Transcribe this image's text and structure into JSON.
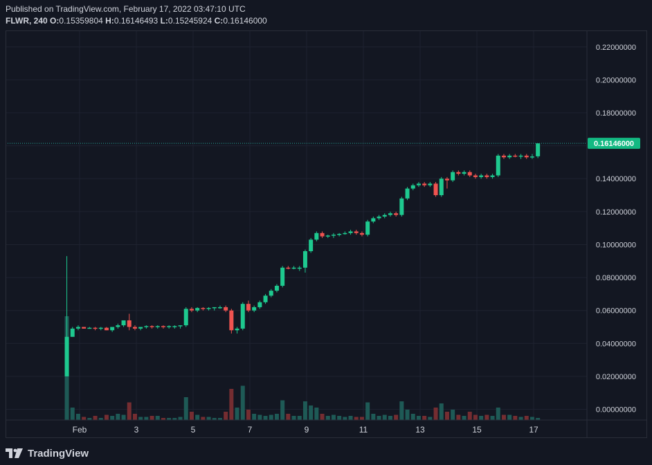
{
  "header": {
    "published": "Published on TradingView.com, February 17, 2022 03:47:10 UTC",
    "symbol": "FLWR",
    "interval": "240",
    "o_label": "O:",
    "o_value": "0.15359804",
    "h_label": "H:",
    "h_value": "0.16146493",
    "l_label": "L:",
    "l_value": "0.15245924",
    "c_label": "C:",
    "c_value": "0.16146000"
  },
  "footer": {
    "brand": "TradingView"
  },
  "colors": {
    "up": "#26a69a",
    "upBright": "#22ab94",
    "upCandle": "#1ec98f",
    "down": "#ef5350",
    "grid": "#1e2230",
    "background": "#131722",
    "axisText": "#d1d4dc",
    "priceLine": "#26a69a",
    "priceTag": "#13b982"
  },
  "chart_data": {
    "type": "candlestick",
    "title": "",
    "xlabel": "",
    "ylabel": "",
    "ylim": [
      -0.0065,
      0.23
    ],
    "y_ticks": [
      "0.22000000",
      "0.20000000",
      "0.18000000",
      "0.16000000",
      "0.14000000",
      "0.12000000",
      "0.10000000",
      "0.08000000",
      "0.06000000",
      "0.04000000",
      "0.02000000",
      "0.00000000"
    ],
    "y_tick_values": [
      0.22,
      0.2,
      0.18,
      0.16,
      0.14,
      0.12,
      0.1,
      0.08,
      0.06,
      0.04,
      0.02,
      0.0
    ],
    "x_ticks": [
      "Feb",
      "3",
      "5",
      "7",
      "9",
      "11",
      "13",
      "15",
      "17"
    ],
    "x_tick_day": [
      1,
      3,
      5,
      7,
      9,
      11,
      13,
      15,
      17
    ],
    "last_price_label": "0.16146000",
    "last_price": 0.16146,
    "candles": [
      {
        "d": 0.55,
        "o": 0.02,
        "h": 0.093,
        "l": 0.02,
        "c": 0.044,
        "v": 1.0
      },
      {
        "d": 0.75,
        "o": 0.044,
        "h": 0.05,
        "l": 0.044,
        "c": 0.049,
        "v": 0.12
      },
      {
        "d": 0.95,
        "o": 0.049,
        "h": 0.051,
        "l": 0.048,
        "c": 0.05,
        "v": 0.06
      },
      {
        "d": 1.15,
        "o": 0.05,
        "h": 0.05,
        "l": 0.049,
        "c": 0.049,
        "v": 0.03
      },
      {
        "d": 1.35,
        "o": 0.049,
        "h": 0.05,
        "l": 0.049,
        "c": 0.0495,
        "v": 0.02
      },
      {
        "d": 1.55,
        "o": 0.0495,
        "h": 0.05,
        "l": 0.048,
        "c": 0.049,
        "v": 0.04
      },
      {
        "d": 1.75,
        "o": 0.049,
        "h": 0.05,
        "l": 0.048,
        "c": 0.0495,
        "v": 0.02
      },
      {
        "d": 1.95,
        "o": 0.0495,
        "h": 0.05,
        "l": 0.048,
        "c": 0.048,
        "v": 0.05
      },
      {
        "d": 2.15,
        "o": 0.048,
        "h": 0.05,
        "l": 0.047,
        "c": 0.05,
        "v": 0.04
      },
      {
        "d": 2.35,
        "o": 0.05,
        "h": 0.052,
        "l": 0.049,
        "c": 0.051,
        "v": 0.06
      },
      {
        "d": 2.55,
        "o": 0.051,
        "h": 0.054,
        "l": 0.05,
        "c": 0.054,
        "v": 0.05
      },
      {
        "d": 2.75,
        "o": 0.054,
        "h": 0.058,
        "l": 0.048,
        "c": 0.05,
        "v": 0.17
      },
      {
        "d": 2.95,
        "o": 0.05,
        "h": 0.051,
        "l": 0.048,
        "c": 0.049,
        "v": 0.06
      },
      {
        "d": 3.15,
        "o": 0.049,
        "h": 0.05,
        "l": 0.048,
        "c": 0.05,
        "v": 0.03
      },
      {
        "d": 3.35,
        "o": 0.05,
        "h": 0.051,
        "l": 0.049,
        "c": 0.0505,
        "v": 0.03
      },
      {
        "d": 3.55,
        "o": 0.0505,
        "h": 0.051,
        "l": 0.049,
        "c": 0.05,
        "v": 0.04
      },
      {
        "d": 3.75,
        "o": 0.05,
        "h": 0.051,
        "l": 0.049,
        "c": 0.0505,
        "v": 0.04
      },
      {
        "d": 3.95,
        "o": 0.0505,
        "h": 0.051,
        "l": 0.049,
        "c": 0.05,
        "v": 0.02
      },
      {
        "d": 4.15,
        "o": 0.05,
        "h": 0.051,
        "l": 0.049,
        "c": 0.0505,
        "v": 0.02
      },
      {
        "d": 4.35,
        "o": 0.0505,
        "h": 0.051,
        "l": 0.049,
        "c": 0.0505,
        "v": 0.02
      },
      {
        "d": 4.55,
        "o": 0.0505,
        "h": 0.051,
        "l": 0.049,
        "c": 0.051,
        "v": 0.03
      },
      {
        "d": 4.75,
        "o": 0.051,
        "h": 0.062,
        "l": 0.05,
        "c": 0.061,
        "v": 0.22
      },
      {
        "d": 4.95,
        "o": 0.061,
        "h": 0.062,
        "l": 0.059,
        "c": 0.06,
        "v": 0.08
      },
      {
        "d": 5.15,
        "o": 0.06,
        "h": 0.062,
        "l": 0.059,
        "c": 0.0615,
        "v": 0.05
      },
      {
        "d": 5.35,
        "o": 0.0615,
        "h": 0.062,
        "l": 0.06,
        "c": 0.061,
        "v": 0.03
      },
      {
        "d": 5.55,
        "o": 0.061,
        "h": 0.062,
        "l": 0.06,
        "c": 0.0615,
        "v": 0.03
      },
      {
        "d": 5.75,
        "o": 0.0615,
        "h": 0.062,
        "l": 0.06,
        "c": 0.062,
        "v": 0.02
      },
      {
        "d": 5.95,
        "o": 0.062,
        "h": 0.063,
        "l": 0.061,
        "c": 0.062,
        "v": 0.02
      },
      {
        "d": 6.15,
        "o": 0.062,
        "h": 0.063,
        "l": 0.059,
        "c": 0.06,
        "v": 0.08
      },
      {
        "d": 6.35,
        "o": 0.06,
        "h": 0.061,
        "l": 0.046,
        "c": 0.048,
        "v": 0.3
      },
      {
        "d": 6.55,
        "o": 0.048,
        "h": 0.05,
        "l": 0.046,
        "c": 0.049,
        "v": 0.12
      },
      {
        "d": 6.75,
        "o": 0.049,
        "h": 0.065,
        "l": 0.048,
        "c": 0.064,
        "v": 0.33
      },
      {
        "d": 6.95,
        "o": 0.064,
        "h": 0.066,
        "l": 0.059,
        "c": 0.06,
        "v": 0.1
      },
      {
        "d": 7.15,
        "o": 0.06,
        "h": 0.063,
        "l": 0.059,
        "c": 0.062,
        "v": 0.06
      },
      {
        "d": 7.35,
        "o": 0.062,
        "h": 0.066,
        "l": 0.061,
        "c": 0.065,
        "v": 0.05
      },
      {
        "d": 7.55,
        "o": 0.065,
        "h": 0.07,
        "l": 0.064,
        "c": 0.069,
        "v": 0.04
      },
      {
        "d": 7.75,
        "o": 0.069,
        "h": 0.073,
        "l": 0.068,
        "c": 0.072,
        "v": 0.05
      },
      {
        "d": 7.95,
        "o": 0.072,
        "h": 0.076,
        "l": 0.071,
        "c": 0.075,
        "v": 0.06
      },
      {
        "d": 8.15,
        "o": 0.075,
        "h": 0.087,
        "l": 0.074,
        "c": 0.086,
        "v": 0.19
      },
      {
        "d": 8.35,
        "o": 0.086,
        "h": 0.087,
        "l": 0.085,
        "c": 0.0855,
        "v": 0.06
      },
      {
        "d": 8.55,
        "o": 0.0855,
        "h": 0.087,
        "l": 0.085,
        "c": 0.086,
        "v": 0.04
      },
      {
        "d": 8.75,
        "o": 0.086,
        "h": 0.087,
        "l": 0.084,
        "c": 0.086,
        "v": 0.04
      },
      {
        "d": 8.95,
        "o": 0.086,
        "h": 0.097,
        "l": 0.083,
        "c": 0.096,
        "v": 0.18
      },
      {
        "d": 9.15,
        "o": 0.096,
        "h": 0.104,
        "l": 0.095,
        "c": 0.103,
        "v": 0.14
      },
      {
        "d": 9.35,
        "o": 0.103,
        "h": 0.108,
        "l": 0.102,
        "c": 0.107,
        "v": 0.12
      },
      {
        "d": 9.55,
        "o": 0.107,
        "h": 0.108,
        "l": 0.104,
        "c": 0.105,
        "v": 0.06
      },
      {
        "d": 9.75,
        "o": 0.105,
        "h": 0.106,
        "l": 0.104,
        "c": 0.1055,
        "v": 0.04
      },
      {
        "d": 9.95,
        "o": 0.1055,
        "h": 0.107,
        "l": 0.104,
        "c": 0.106,
        "v": 0.05
      },
      {
        "d": 10.15,
        "o": 0.106,
        "h": 0.107,
        "l": 0.105,
        "c": 0.1065,
        "v": 0.04
      },
      {
        "d": 10.35,
        "o": 0.1065,
        "h": 0.108,
        "l": 0.106,
        "c": 0.107,
        "v": 0.03
      },
      {
        "d": 10.55,
        "o": 0.107,
        "h": 0.109,
        "l": 0.106,
        "c": 0.108,
        "v": 0.04
      },
      {
        "d": 10.75,
        "o": 0.108,
        "h": 0.109,
        "l": 0.106,
        "c": 0.107,
        "v": 0.03
      },
      {
        "d": 10.95,
        "o": 0.107,
        "h": 0.108,
        "l": 0.105,
        "c": 0.106,
        "v": 0.03
      },
      {
        "d": 11.15,
        "o": 0.106,
        "h": 0.115,
        "l": 0.105,
        "c": 0.114,
        "v": 0.17
      },
      {
        "d": 11.35,
        "o": 0.114,
        "h": 0.117,
        "l": 0.113,
        "c": 0.116,
        "v": 0.06
      },
      {
        "d": 11.55,
        "o": 0.116,
        "h": 0.118,
        "l": 0.115,
        "c": 0.117,
        "v": 0.04
      },
      {
        "d": 11.75,
        "o": 0.117,
        "h": 0.119,
        "l": 0.116,
        "c": 0.118,
        "v": 0.05
      },
      {
        "d": 11.95,
        "o": 0.118,
        "h": 0.12,
        "l": 0.117,
        "c": 0.119,
        "v": 0.04
      },
      {
        "d": 12.15,
        "o": 0.119,
        "h": 0.12,
        "l": 0.117,
        "c": 0.118,
        "v": 0.05
      },
      {
        "d": 12.35,
        "o": 0.118,
        "h": 0.129,
        "l": 0.117,
        "c": 0.128,
        "v": 0.18
      },
      {
        "d": 12.55,
        "o": 0.128,
        "h": 0.135,
        "l": 0.127,
        "c": 0.134,
        "v": 0.1
      },
      {
        "d": 12.75,
        "o": 0.134,
        "h": 0.137,
        "l": 0.133,
        "c": 0.136,
        "v": 0.06
      },
      {
        "d": 12.95,
        "o": 0.136,
        "h": 0.138,
        "l": 0.135,
        "c": 0.137,
        "v": 0.04
      },
      {
        "d": 13.15,
        "o": 0.137,
        "h": 0.138,
        "l": 0.135,
        "c": 0.136,
        "v": 0.04
      },
      {
        "d": 13.35,
        "o": 0.136,
        "h": 0.138,
        "l": 0.135,
        "c": 0.137,
        "v": 0.03
      },
      {
        "d": 13.55,
        "o": 0.137,
        "h": 0.138,
        "l": 0.129,
        "c": 0.13,
        "v": 0.12
      },
      {
        "d": 13.75,
        "o": 0.13,
        "h": 0.141,
        "l": 0.129,
        "c": 0.14,
        "v": 0.16
      },
      {
        "d": 13.95,
        "o": 0.14,
        "h": 0.141,
        "l": 0.134,
        "c": 0.139,
        "v": 0.08
      },
      {
        "d": 14.15,
        "o": 0.139,
        "h": 0.145,
        "l": 0.138,
        "c": 0.144,
        "v": 0.1
      },
      {
        "d": 14.35,
        "o": 0.144,
        "h": 0.145,
        "l": 0.142,
        "c": 0.143,
        "v": 0.05
      },
      {
        "d": 14.55,
        "o": 0.143,
        "h": 0.145,
        "l": 0.142,
        "c": 0.144,
        "v": 0.04
      },
      {
        "d": 14.75,
        "o": 0.144,
        "h": 0.145,
        "l": 0.141,
        "c": 0.142,
        "v": 0.08
      },
      {
        "d": 14.95,
        "o": 0.142,
        "h": 0.143,
        "l": 0.14,
        "c": 0.141,
        "v": 0.05
      },
      {
        "d": 15.15,
        "o": 0.141,
        "h": 0.143,
        "l": 0.14,
        "c": 0.142,
        "v": 0.04
      },
      {
        "d": 15.35,
        "o": 0.142,
        "h": 0.143,
        "l": 0.14,
        "c": 0.141,
        "v": 0.05
      },
      {
        "d": 15.55,
        "o": 0.141,
        "h": 0.143,
        "l": 0.14,
        "c": 0.142,
        "v": 0.04
      },
      {
        "d": 15.75,
        "o": 0.142,
        "h": 0.155,
        "l": 0.141,
        "c": 0.154,
        "v": 0.12
      },
      {
        "d": 15.95,
        "o": 0.154,
        "h": 0.155,
        "l": 0.152,
        "c": 0.153,
        "v": 0.05
      },
      {
        "d": 16.15,
        "o": 0.153,
        "h": 0.155,
        "l": 0.152,
        "c": 0.154,
        "v": 0.05
      },
      {
        "d": 16.35,
        "o": 0.154,
        "h": 0.155,
        "l": 0.153,
        "c": 0.1535,
        "v": 0.04
      },
      {
        "d": 16.55,
        "o": 0.1535,
        "h": 0.155,
        "l": 0.152,
        "c": 0.154,
        "v": 0.03
      },
      {
        "d": 16.75,
        "o": 0.154,
        "h": 0.155,
        "l": 0.152,
        "c": 0.153,
        "v": 0.04
      },
      {
        "d": 16.95,
        "o": 0.153,
        "h": 0.155,
        "l": 0.152,
        "c": 0.1535,
        "v": 0.03
      },
      {
        "d": 17.15,
        "o": 0.1536,
        "h": 0.1615,
        "l": 0.1525,
        "c": 0.16146,
        "v": 0.02
      }
    ]
  }
}
